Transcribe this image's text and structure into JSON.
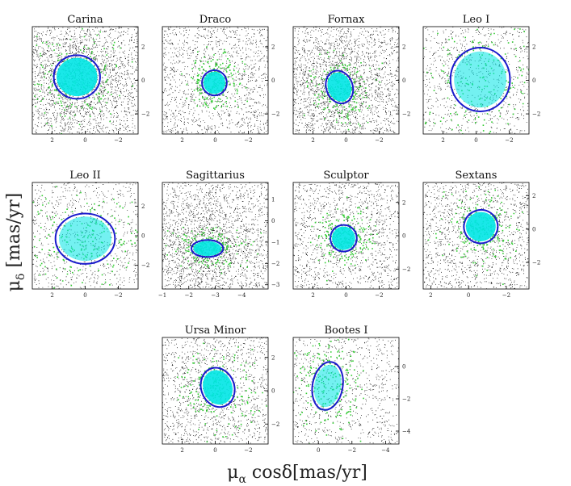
{
  "figure": {
    "xlabel": "μα cosδ[mas/yr]",
    "ylabel": "μδ [mas/yr]"
  },
  "colors": {
    "field_stars": "#000000",
    "members": "#33cc33",
    "core_members": "#00e5e5",
    "ellipse": "#1a1acc",
    "frame": "#000000"
  },
  "chart_data": [
    {
      "type": "scatter",
      "title": "Carina",
      "xlim": [
        3.2,
        -3.2
      ],
      "ylim": [
        -3.2,
        3.2
      ],
      "xticks": [
        2,
        0,
        -2
      ],
      "yticks": [
        2,
        0,
        -2
      ],
      "ellipse": {
        "cx": 0.5,
        "cy": 0.2,
        "rx": 1.4,
        "ry": 1.3,
        "angle": 0
      },
      "density": "high"
    },
    {
      "type": "scatter",
      "title": "Draco",
      "xlim": [
        3.2,
        -3.2
      ],
      "ylim": [
        -3.2,
        3.2
      ],
      "xticks": [
        2,
        0,
        -2
      ],
      "yticks": [
        2,
        0,
        -2
      ],
      "ellipse": {
        "cx": 0.05,
        "cy": -0.15,
        "rx": 0.75,
        "ry": 0.75,
        "angle": 0
      },
      "density": "medium"
    },
    {
      "type": "scatter",
      "title": "Fornax",
      "xlim": [
        3.2,
        -3.2
      ],
      "ylim": [
        -3.2,
        3.2
      ],
      "xticks": [
        2,
        0,
        -2
      ],
      "yticks": [
        2,
        0,
        -2
      ],
      "ellipse": {
        "cx": 0.4,
        "cy": -0.4,
        "rx": 0.8,
        "ry": 1.0,
        "angle": 20
      },
      "density": "high"
    },
    {
      "type": "scatter",
      "title": "Leo I",
      "xlim": [
        3.2,
        -3.2
      ],
      "ylim": [
        -3.2,
        3.2
      ],
      "xticks": [
        2,
        0,
        -2
      ],
      "yticks": [
        2,
        0,
        -2
      ],
      "ellipse": {
        "cx": -0.25,
        "cy": 0.05,
        "rx": 1.8,
        "ry": 1.9,
        "angle": 0
      },
      "density": "low"
    },
    {
      "type": "scatter",
      "title": "Leo II",
      "xlim": [
        3.2,
        -3.2
      ],
      "ylim": [
        -3.6,
        3.6
      ],
      "xticks": [
        2,
        0,
        -2
      ],
      "yticks": [
        2,
        0,
        -2
      ],
      "ellipse": {
        "cx": 0.0,
        "cy": -0.2,
        "rx": 1.8,
        "ry": 1.7,
        "angle": 0
      },
      "density": "low"
    },
    {
      "type": "scatter",
      "title": "Sagittarius",
      "xlim": [
        -1,
        -5
      ],
      "ylim": [
        -3.2,
        1.8
      ],
      "xticks": [
        -1,
        -2,
        -3,
        -4
      ],
      "yticks": [
        1,
        0,
        -1,
        -2,
        -3
      ],
      "ellipse": {
        "cx": -2.7,
        "cy": -1.3,
        "rx": 0.6,
        "ry": 0.4,
        "angle": 0
      },
      "density": "high"
    },
    {
      "type": "scatter",
      "title": "Sculptor",
      "xlim": [
        3.2,
        -3.2
      ],
      "ylim": [
        -3.2,
        3.2
      ],
      "xticks": [
        2,
        0,
        -2
      ],
      "yticks": [
        2,
        0,
        -2
      ],
      "ellipse": {
        "cx": 0.15,
        "cy": -0.15,
        "rx": 0.8,
        "ry": 0.8,
        "angle": 0
      },
      "density": "medium"
    },
    {
      "type": "scatter",
      "title": "Sextans",
      "xlim": [
        2.4,
        -3.2
      ],
      "ylim": [
        -3.6,
        2.8
      ],
      "xticks": [
        2,
        0,
        -2
      ],
      "yticks": [
        2,
        0,
        -2
      ],
      "ellipse": {
        "cx": -0.65,
        "cy": 0.15,
        "rx": 0.9,
        "ry": 1.0,
        "angle": 20
      },
      "density": "medium"
    },
    {
      "type": "scatter",
      "title": "Ursa Minor",
      "xlim": [
        3.2,
        -3.2
      ],
      "ylim": [
        -3.2,
        3.2
      ],
      "xticks": [
        2,
        0,
        -2
      ],
      "yticks": [
        2,
        0,
        -2
      ],
      "ellipse": {
        "cx": -0.15,
        "cy": 0.2,
        "rx": 1.0,
        "ry": 1.2,
        "angle": 20
      },
      "density": "medium"
    },
    {
      "type": "scatter",
      "title": "Bootes I",
      "xlim": [
        1.5,
        -4.8
      ],
      "ylim": [
        -4.8,
        1.8
      ],
      "xticks": [
        0,
        -2,
        -4
      ],
      "yticks": [
        0,
        -2,
        -4
      ],
      "ellipse": {
        "cx": -0.55,
        "cy": -1.2,
        "rx": 0.9,
        "ry": 1.5,
        "angle": -10
      },
      "density": "low"
    }
  ]
}
